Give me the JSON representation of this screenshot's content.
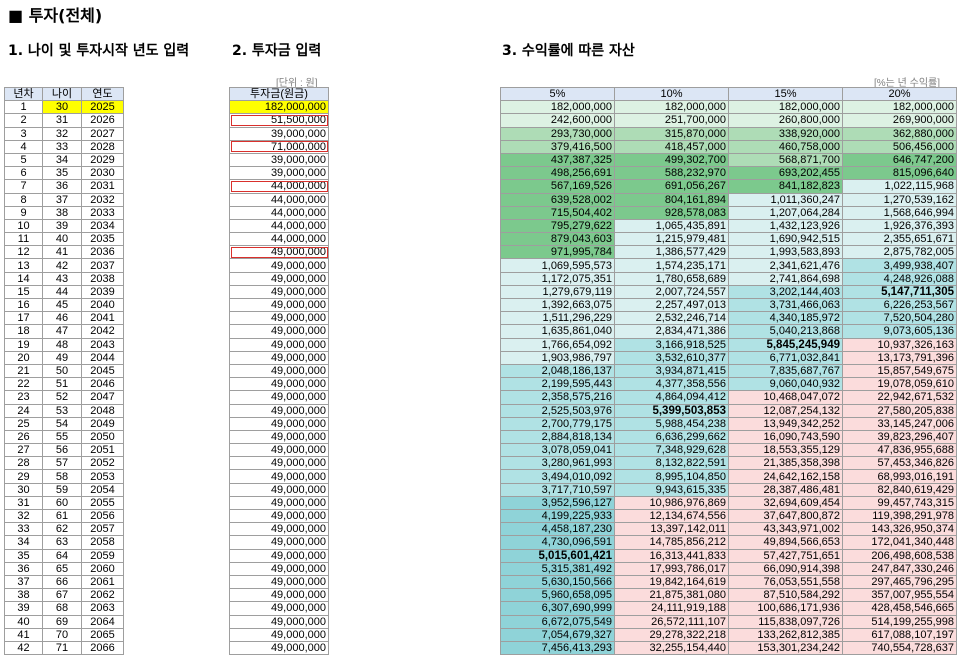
{
  "page_title": "■ 투자(전체)",
  "section1_title": "1. 나이 및 투자시작 년도 입력",
  "section2_title": "2. 투자금 입력",
  "section3_title": "3. 수익률에 따른 자산",
  "unit_note": "[단위 : 원]",
  "rate_note": "[%는 년 수익률]",
  "headers": {
    "year_no": "년차",
    "age": "나이",
    "year": "연도",
    "investment": "투자금(원금)",
    "r5": "5%",
    "r10": "10%",
    "r15": "15%",
    "r20": "20%"
  },
  "colors": {
    "header_bg": "#dce6f5",
    "start_highlight": "#ffff00",
    "changed_amount_border": "#d9302c",
    "green_light": "#ddf2e3",
    "green_mid": "#aedcb6",
    "green_dark": "#7cc98d",
    "teal_light": "#daf0f0",
    "teal_mid": "#b0e2e4",
    "teal_dark": "#8fd3d8",
    "pink": "#fbdcdc"
  },
  "rows": [
    {
      "n": "1",
      "age": "30",
      "year": "2025",
      "inv": "182,000,000",
      "hl": true,
      "box": false,
      "r5": "182,000,000",
      "r10": "182,000,000",
      "r15": "182,000,000",
      "r20": "182,000,000"
    },
    {
      "n": "2",
      "age": "31",
      "year": "2026",
      "inv": "51,500,000",
      "hl": false,
      "box": true,
      "r5": "242,600,000",
      "r10": "251,700,000",
      "r15": "260,800,000",
      "r20": "269,900,000"
    },
    {
      "n": "3",
      "age": "32",
      "year": "2027",
      "inv": "39,000,000",
      "hl": false,
      "box": false,
      "r5": "293,730,000",
      "r10": "315,870,000",
      "r15": "338,920,000",
      "r20": "362,880,000"
    },
    {
      "n": "4",
      "age": "33",
      "year": "2028",
      "inv": "71,000,000",
      "hl": false,
      "box": true,
      "r5": "379,416,500",
      "r10": "418,457,000",
      "r15": "460,758,000",
      "r20": "506,456,000"
    },
    {
      "n": "5",
      "age": "34",
      "year": "2029",
      "inv": "39,000,000",
      "hl": false,
      "box": false,
      "r5": "437,387,325",
      "r10": "499,302,700",
      "r15": "568,871,700",
      "r20": "646,747,200"
    },
    {
      "n": "6",
      "age": "35",
      "year": "2030",
      "inv": "39,000,000",
      "hl": false,
      "box": false,
      "r5": "498,256,691",
      "r10": "588,232,970",
      "r15": "693,202,455",
      "r20": "815,096,640"
    },
    {
      "n": "7",
      "age": "36",
      "year": "2031",
      "inv": "44,000,000",
      "hl": false,
      "box": true,
      "r5": "567,169,526",
      "r10": "691,056,267",
      "r15": "841,182,823",
      "r20": "1,022,115,968"
    },
    {
      "n": "8",
      "age": "37",
      "year": "2032",
      "inv": "44,000,000",
      "hl": false,
      "box": false,
      "r5": "639,528,002",
      "r10": "804,161,894",
      "r15": "1,011,360,247",
      "r20": "1,270,539,162"
    },
    {
      "n": "9",
      "age": "38",
      "year": "2033",
      "inv": "44,000,000",
      "hl": false,
      "box": false,
      "r5": "715,504,402",
      "r10": "928,578,083",
      "r15": "1,207,064,284",
      "r20": "1,568,646,994"
    },
    {
      "n": "10",
      "age": "39",
      "year": "2034",
      "inv": "44,000,000",
      "hl": false,
      "box": false,
      "r5": "795,279,622",
      "r10": "1,065,435,891",
      "r15": "1,432,123,926",
      "r20": "1,926,376,393"
    },
    {
      "n": "11",
      "age": "40",
      "year": "2035",
      "inv": "44,000,000",
      "hl": false,
      "box": false,
      "r5": "879,043,603",
      "r10": "1,215,979,481",
      "r15": "1,690,942,515",
      "r20": "2,355,651,671"
    },
    {
      "n": "12",
      "age": "41",
      "year": "2036",
      "inv": "49,000,000",
      "hl": false,
      "box": true,
      "r5": "971,995,784",
      "r10": "1,386,577,429",
      "r15": "1,993,583,893",
      "r20": "2,875,782,005"
    },
    {
      "n": "13",
      "age": "42",
      "year": "2037",
      "inv": "49,000,000",
      "hl": false,
      "box": false,
      "r5": "1,069,595,573",
      "r10": "1,574,235,171",
      "r15": "2,341,621,476",
      "r20": "3,499,938,407"
    },
    {
      "n": "14",
      "age": "43",
      "year": "2038",
      "inv": "49,000,000",
      "hl": false,
      "box": false,
      "r5": "1,172,075,351",
      "r10": "1,780,658,689",
      "r15": "2,741,864,698",
      "r20": "4,248,926,088"
    },
    {
      "n": "15",
      "age": "44",
      "year": "2039",
      "inv": "49,000,000",
      "hl": false,
      "box": false,
      "r5": "1,279,679,119",
      "r10": "2,007,724,557",
      "r15": "3,202,144,403",
      "r20": "5,147,711,305"
    },
    {
      "n": "16",
      "age": "45",
      "year": "2040",
      "inv": "49,000,000",
      "hl": false,
      "box": false,
      "r5": "1,392,663,075",
      "r10": "2,257,497,013",
      "r15": "3,731,466,063",
      "r20": "6,226,253,567"
    },
    {
      "n": "17",
      "age": "46",
      "year": "2041",
      "inv": "49,000,000",
      "hl": false,
      "box": false,
      "r5": "1,511,296,229",
      "r10": "2,532,246,714",
      "r15": "4,340,185,972",
      "r20": "7,520,504,280"
    },
    {
      "n": "18",
      "age": "47",
      "year": "2042",
      "inv": "49,000,000",
      "hl": false,
      "box": false,
      "r5": "1,635,861,040",
      "r10": "2,834,471,386",
      "r15": "5,040,213,868",
      "r20": "9,073,605,136"
    },
    {
      "n": "19",
      "age": "48",
      "year": "2043",
      "inv": "49,000,000",
      "hl": false,
      "box": false,
      "r5": "1,766,654,092",
      "r10": "3,166,918,525",
      "r15": "5,845,245,949",
      "r20": "10,937,326,163"
    },
    {
      "n": "20",
      "age": "49",
      "year": "2044",
      "inv": "49,000,000",
      "hl": false,
      "box": false,
      "r5": "1,903,986,797",
      "r10": "3,532,610,377",
      "r15": "6,771,032,841",
      "r20": "13,173,791,396"
    },
    {
      "n": "21",
      "age": "50",
      "year": "2045",
      "inv": "49,000,000",
      "hl": false,
      "box": false,
      "r5": "2,048,186,137",
      "r10": "3,934,871,415",
      "r15": "7,835,687,767",
      "r20": "15,857,549,675"
    },
    {
      "n": "22",
      "age": "51",
      "year": "2046",
      "inv": "49,000,000",
      "hl": false,
      "box": false,
      "r5": "2,199,595,443",
      "r10": "4,377,358,556",
      "r15": "9,060,040,932",
      "r20": "19,078,059,610"
    },
    {
      "n": "23",
      "age": "52",
      "year": "2047",
      "inv": "49,000,000",
      "hl": false,
      "box": false,
      "r5": "2,358,575,216",
      "r10": "4,864,094,412",
      "r15": "10,468,047,072",
      "r20": "22,942,671,532"
    },
    {
      "n": "24",
      "age": "53",
      "year": "2048",
      "inv": "49,000,000",
      "hl": false,
      "box": false,
      "r5": "2,525,503,976",
      "r10": "5,399,503,853",
      "r15": "12,087,254,132",
      "r20": "27,580,205,838"
    },
    {
      "n": "25",
      "age": "54",
      "year": "2049",
      "inv": "49,000,000",
      "hl": false,
      "box": false,
      "r5": "2,700,779,175",
      "r10": "5,988,454,238",
      "r15": "13,949,342,252",
      "r20": "33,145,247,006"
    },
    {
      "n": "26",
      "age": "55",
      "year": "2050",
      "inv": "49,000,000",
      "hl": false,
      "box": false,
      "r5": "2,884,818,134",
      "r10": "6,636,299,662",
      "r15": "16,090,743,590",
      "r20": "39,823,296,407"
    },
    {
      "n": "27",
      "age": "56",
      "year": "2051",
      "inv": "49,000,000",
      "hl": false,
      "box": false,
      "r5": "3,078,059,041",
      "r10": "7,348,929,628",
      "r15": "18,553,355,129",
      "r20": "47,836,955,688"
    },
    {
      "n": "28",
      "age": "57",
      "year": "2052",
      "inv": "49,000,000",
      "hl": false,
      "box": false,
      "r5": "3,280,961,993",
      "r10": "8,132,822,591",
      "r15": "21,385,358,398",
      "r20": "57,453,346,826"
    },
    {
      "n": "29",
      "age": "58",
      "year": "2053",
      "inv": "49,000,000",
      "hl": false,
      "box": false,
      "r5": "3,494,010,092",
      "r10": "8,995,104,850",
      "r15": "24,642,162,158",
      "r20": "68,993,016,191"
    },
    {
      "n": "30",
      "age": "59",
      "year": "2054",
      "inv": "49,000,000",
      "hl": false,
      "box": false,
      "r5": "3,717,710,597",
      "r10": "9,943,615,335",
      "r15": "28,387,486,481",
      "r20": "82,840,619,429"
    },
    {
      "n": "31",
      "age": "60",
      "year": "2055",
      "inv": "49,000,000",
      "hl": false,
      "box": false,
      "r5": "3,952,596,127",
      "r10": "10,986,976,869",
      "r15": "32,694,609,454",
      "r20": "99,457,743,315"
    },
    {
      "n": "32",
      "age": "61",
      "year": "2056",
      "inv": "49,000,000",
      "hl": false,
      "box": false,
      "r5": "4,199,225,933",
      "r10": "12,134,674,556",
      "r15": "37,647,800,872",
      "r20": "119,398,291,978"
    },
    {
      "n": "33",
      "age": "62",
      "year": "2057",
      "inv": "49,000,000",
      "hl": false,
      "box": false,
      "r5": "4,458,187,230",
      "r10": "13,397,142,011",
      "r15": "43,343,971,002",
      "r20": "143,326,950,374"
    },
    {
      "n": "34",
      "age": "63",
      "year": "2058",
      "inv": "49,000,000",
      "hl": false,
      "box": false,
      "r5": "4,730,096,591",
      "r10": "14,785,856,212",
      "r15": "49,894,566,653",
      "r20": "172,041,340,448"
    },
    {
      "n": "35",
      "age": "64",
      "year": "2059",
      "inv": "49,000,000",
      "hl": false,
      "box": false,
      "r5": "5,015,601,421",
      "r10": "16,313,441,833",
      "r15": "57,427,751,651",
      "r20": "206,498,608,538"
    },
    {
      "n": "36",
      "age": "65",
      "year": "2060",
      "inv": "49,000,000",
      "hl": false,
      "box": false,
      "r5": "5,315,381,492",
      "r10": "17,993,786,017",
      "r15": "66,090,914,398",
      "r20": "247,847,330,246"
    },
    {
      "n": "37",
      "age": "66",
      "year": "2061",
      "inv": "49,000,000",
      "hl": false,
      "box": false,
      "r5": "5,630,150,566",
      "r10": "19,842,164,619",
      "r15": "76,053,551,558",
      "r20": "297,465,796,295"
    },
    {
      "n": "38",
      "age": "67",
      "year": "2062",
      "inv": "49,000,000",
      "hl": false,
      "box": false,
      "r5": "5,960,658,095",
      "r10": "21,875,381,080",
      "r15": "87,510,584,292",
      "r20": "357,007,955,554"
    },
    {
      "n": "39",
      "age": "68",
      "year": "2063",
      "inv": "49,000,000",
      "hl": false,
      "box": false,
      "r5": "6,307,690,999",
      "r10": "24,111,919,188",
      "r15": "100,686,171,936",
      "r20": "428,458,546,665"
    },
    {
      "n": "40",
      "age": "69",
      "year": "2064",
      "inv": "49,000,000",
      "hl": false,
      "box": false,
      "r5": "6,672,075,549",
      "r10": "26,572,111,107",
      "r15": "115,838,097,726",
      "r20": "514,199,255,998"
    },
    {
      "n": "41",
      "age": "70",
      "year": "2065",
      "inv": "49,000,000",
      "hl": false,
      "box": false,
      "r5": "7,054,679,327",
      "r10": "29,278,322,218",
      "r15": "133,262,812,385",
      "r20": "617,088,107,197"
    },
    {
      "n": "42",
      "age": "71",
      "year": "2066",
      "inv": "49,000,000",
      "hl": false,
      "box": false,
      "r5": "7,456,413,293",
      "r10": "32,255,154,440",
      "r15": "153,301,234,242",
      "r20": "740,554,728,637"
    }
  ]
}
